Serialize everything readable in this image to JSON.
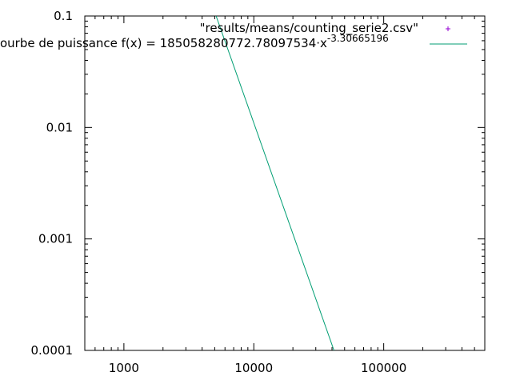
{
  "chart_data": {
    "type": "line",
    "title": "",
    "xlabel": "",
    "ylabel": "",
    "x_scale": "log",
    "y_scale": "log",
    "xlim": [
      500,
      600000
    ],
    "ylim": [
      0.0001,
      0.1
    ],
    "grid": false,
    "legend_position": "top-right",
    "x_ticks": [
      {
        "value": 1000,
        "label": "1000"
      },
      {
        "value": 10000,
        "label": "10000"
      },
      {
        "value": 100000,
        "label": "100000"
      }
    ],
    "y_ticks": [
      {
        "value": 0.1,
        "label": "0.1"
      },
      {
        "value": 0.01,
        "label": "0.01"
      },
      {
        "value": 0.001,
        "label": "0.001"
      },
      {
        "value": 0.0001,
        "label": "0.0001"
      }
    ],
    "series": [
      {
        "name": "\"results/means/counting_serie2.csv\"",
        "kind": "points",
        "marker": "+",
        "color": "#9400d3",
        "points": []
      },
      {
        "name_prefix": "ourbe de puissance f(x) = 185058280772.78097534·x",
        "name_exponent": "-3.30665196",
        "kind": "line",
        "color": "#009e73",
        "coefficient": 185058280772.78098,
        "exponent": -3.30665196,
        "x_range": [
          5000,
          42000
        ]
      }
    ]
  }
}
